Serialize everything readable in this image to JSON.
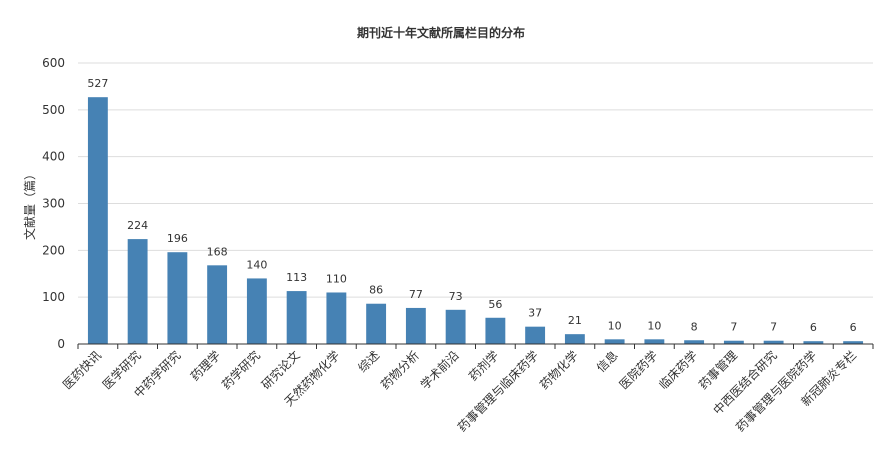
{
  "chart_data": {
    "type": "bar",
    "title": "期刊近十年文献所属栏目的分布",
    "xlabel": "",
    "ylabel": "文献量（篇）",
    "ylim": [
      0,
      600
    ],
    "yticks": [
      0,
      100,
      200,
      300,
      400,
      500,
      600
    ],
    "grid": true,
    "bar_color": "#4682b4",
    "categories": [
      "医药快讯",
      "医学研究",
      "中药学研究",
      "药理学",
      "药学研究",
      "研究论文",
      "天然药物化学",
      "综述",
      "药物分析",
      "学术前沿",
      "药剂学",
      "药事管理与临床药学",
      "药物化学",
      "信息",
      "医院药学",
      "临床药学",
      "药事管理",
      "中西医结合研究",
      "药事管理与医院药学",
      "新冠肺炎专栏"
    ],
    "values": [
      527,
      224,
      196,
      168,
      140,
      113,
      110,
      86,
      77,
      73,
      56,
      37,
      21,
      10,
      10,
      8,
      7,
      7,
      6,
      6
    ]
  }
}
